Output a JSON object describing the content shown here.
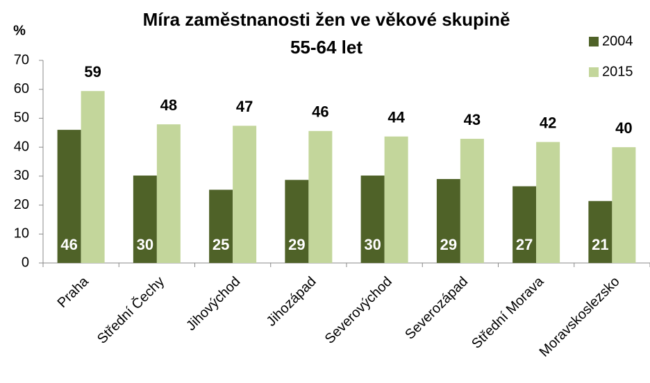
{
  "chart_data": {
    "type": "bar",
    "title": "Míra zaměstnanosti žen ve věkové skupině",
    "subtitle": "55-64 let",
    "y_label": "%",
    "categories": [
      "Praha",
      "Střední Čechy",
      "Jihovýchod",
      "Jihozápad",
      "Severovýchod",
      "Severozápad",
      "Střední Morava",
      "Moravskoslezsko"
    ],
    "series": [
      {
        "name": "2004",
        "color": "#4f6228",
        "values": [
          46.0,
          30.2,
          25.3,
          28.7,
          30.2,
          29.0,
          26.5,
          21.4
        ],
        "value_labels": [
          "46",
          "30",
          "25",
          "29",
          "30",
          "29",
          "27",
          "21"
        ]
      },
      {
        "name": "2015",
        "color": "#c3d69b",
        "values": [
          59.4,
          47.9,
          47.4,
          45.6,
          43.7,
          42.9,
          41.8,
          40.0
        ],
        "value_labels": [
          "59",
          "48",
          "47",
          "46",
          "44",
          "43",
          "42",
          "40"
        ]
      }
    ],
    "ylim": [
      0,
      70
    ],
    "yticks": [
      0,
      10,
      20,
      30,
      40,
      50,
      60,
      70
    ],
    "grid": false,
    "legend": "top-right"
  }
}
